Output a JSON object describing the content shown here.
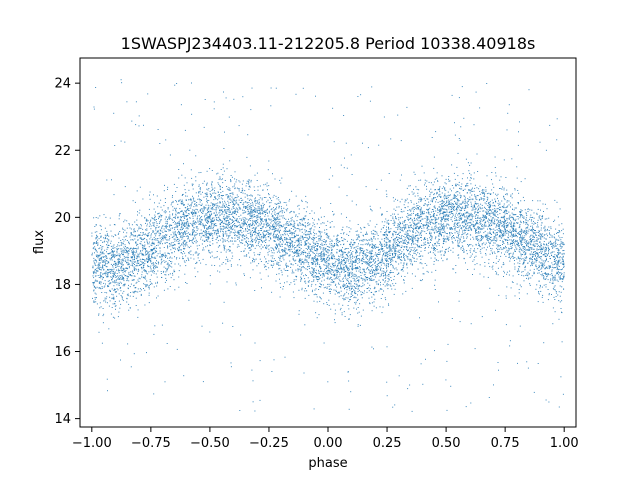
{
  "chart_data": {
    "type": "scatter",
    "title": "1SWASPJ234403.11-212205.8 Period 10338.40918s",
    "xlabel": "phase",
    "ylabel": "flux",
    "xlim": [
      -1.05,
      1.05
    ],
    "ylim": [
      13.75,
      24.75
    ],
    "x_ticks": [
      -1.0,
      -0.75,
      -0.5,
      -0.25,
      0.0,
      0.25,
      0.5,
      0.75,
      1.0
    ],
    "x_tick_labels": [
      "−1.00",
      "−0.75",
      "−0.50",
      "−0.25",
      "0.00",
      "0.25",
      "0.50",
      "0.75",
      "1.00"
    ],
    "y_ticks": [
      14,
      16,
      18,
      20,
      22,
      24
    ],
    "y_tick_labels": [
      "14",
      "16",
      "18",
      "20",
      "22",
      "24"
    ],
    "grid": false,
    "point_color": "#1f77b4",
    "series": [
      {
        "phase_range": [
          -1.0,
          1.0
        ],
        "profile": {
          "phase": [
            -1.0,
            -0.9,
            -0.8,
            -0.7,
            -0.6,
            -0.5,
            -0.4,
            -0.3,
            -0.2,
            -0.1,
            0.0,
            0.1,
            0.2,
            0.3,
            0.4,
            0.5,
            0.6,
            0.7,
            0.8,
            0.9,
            1.0
          ],
          "flux": [
            18.6,
            18.5,
            18.8,
            19.3,
            19.8,
            20.0,
            20.0,
            19.8,
            19.5,
            19.0,
            18.7,
            18.4,
            18.7,
            19.3,
            19.8,
            20.0,
            20.0,
            19.8,
            19.5,
            19.0,
            18.6
          ]
        },
        "scatter_sigma": 0.6,
        "outlier_range": [
          14.2,
          24.2
        ]
      }
    ]
  }
}
